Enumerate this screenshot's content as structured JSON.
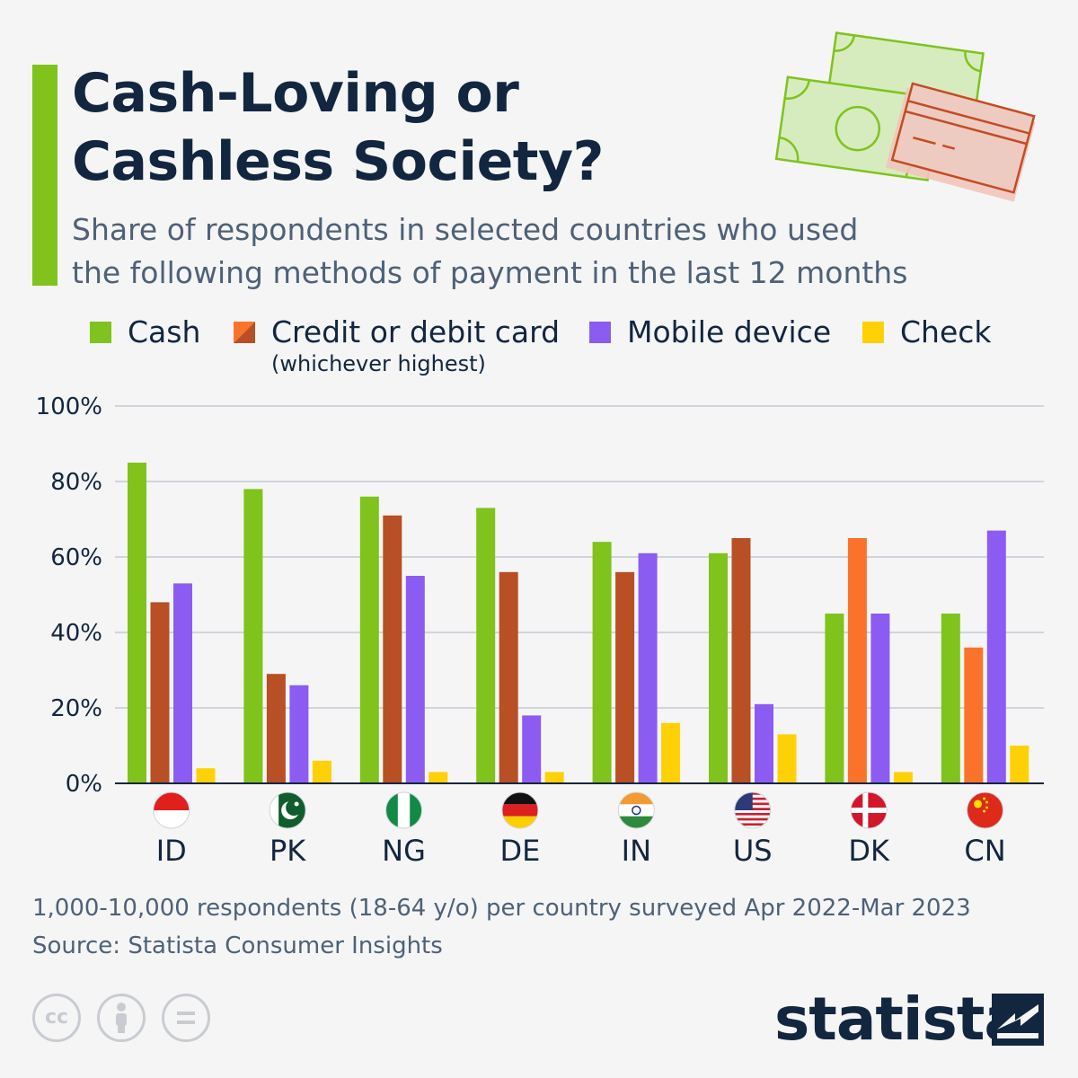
{
  "header": {
    "title_line1": "Cash-Loving or",
    "title_line2": "Cashless Society?",
    "subtitle_line1": "Share of respondents in selected countries who used",
    "subtitle_line2": "the following methods of payment in the last 12 months"
  },
  "legend": {
    "items": [
      {
        "label": "Cash",
        "color": "#7fc31c"
      },
      {
        "label": "Credit or debit card",
        "note": "(whichever highest)",
        "color": "#b84f25",
        "color2": "#fb732b"
      },
      {
        "label": "Mobile device",
        "color": "#8c5cf2"
      },
      {
        "label": "Check",
        "color": "#fdd106"
      }
    ]
  },
  "chart_data": {
    "type": "bar",
    "categories": [
      "ID",
      "PK",
      "NG",
      "DE",
      "IN",
      "US",
      "DK",
      "CN"
    ],
    "y_ticks": [
      "0%",
      "20%",
      "40%",
      "60%",
      "80%",
      "100%"
    ],
    "ylim": [
      0,
      100
    ],
    "grid": true,
    "legend_position": "top",
    "series": [
      {
        "name": "Cash",
        "values": [
          85,
          78,
          76,
          73,
          64,
          61,
          45,
          45
        ]
      },
      {
        "name": "Credit or debit card",
        "values": [
          48,
          29,
          71,
          56,
          56,
          65,
          65,
          36
        ],
        "card_type": [
          "debit",
          "debit",
          "debit",
          "debit",
          "debit",
          "debit",
          "credit",
          "credit"
        ]
      },
      {
        "name": "Mobile device",
        "values": [
          53,
          26,
          55,
          18,
          61,
          21,
          45,
          67
        ]
      },
      {
        "name": "Check",
        "values": [
          4,
          6,
          3,
          3,
          16,
          13,
          3,
          10
        ]
      }
    ],
    "colors": {
      "cash": "#7fc31c",
      "debit": "#b84f25",
      "credit": "#fb732b",
      "mobile": "#8c5cf2",
      "check": "#fdd106",
      "grid": "#c5cad3",
      "axis": "#13263f"
    },
    "flag_icons": [
      "indonesia-flag-icon",
      "pakistan-flag-icon",
      "nigeria-flag-icon",
      "germany-flag-icon",
      "india-flag-icon",
      "usa-flag-icon",
      "denmark-flag-icon",
      "china-flag-icon"
    ]
  },
  "footer": {
    "note": "1,000-10,000 respondents (18-64 y/o) per country surveyed Apr 2022-Mar 2023",
    "source": "Source: Statista Consumer Insights",
    "brand": "statista",
    "license_icons": [
      "cc-icon",
      "attribution-icon",
      "no-derivatives-icon"
    ]
  }
}
